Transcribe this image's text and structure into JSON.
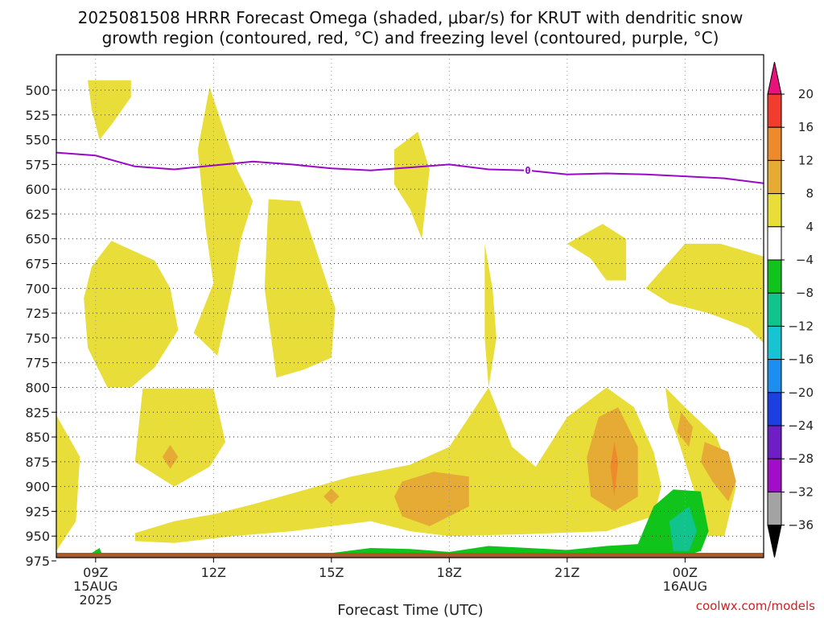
{
  "chart_data": {
    "type": "heatmap",
    "title_lines": [
      "2025081508 HRRR Forecast Omega (shaded, μbar/s) for KRUT with dendritic snow",
      "growth region (contoured, red, °C) and freezing level (contoured, purple, °C)"
    ],
    "xlabel": "Forecast Time (UTC)",
    "ylabel": "",
    "y_ticks": [
      500,
      525,
      550,
      575,
      600,
      625,
      650,
      675,
      700,
      725,
      750,
      775,
      800,
      825,
      850,
      875,
      900,
      925,
      950,
      975
    ],
    "y_axis": "pressure (hPa), inverted",
    "x_range_hours": [
      8,
      26
    ],
    "x_ticks": [
      {
        "hour": 9,
        "lines": [
          "09Z",
          "15AUG",
          "2025"
        ]
      },
      {
        "hour": 12,
        "lines": [
          "12Z"
        ]
      },
      {
        "hour": 15,
        "lines": [
          "15Z"
        ]
      },
      {
        "hour": 18,
        "lines": [
          "18Z"
        ]
      },
      {
        "hour": 21,
        "lines": [
          "21Z"
        ]
      },
      {
        "hour": 24,
        "lines": [
          "00Z",
          "16AUG"
        ]
      }
    ],
    "colorbar": {
      "labels": [
        "20",
        "16",
        "12",
        "8",
        "4",
        "−4",
        "−8",
        "−12",
        "−16",
        "−20",
        "−24",
        "−28",
        "−32",
        "−36"
      ],
      "bins": [
        {
          "range": [
            16,
            20
          ],
          "color": "#f23d2e"
        },
        {
          "range": [
            12,
            16
          ],
          "color": "#ee8a2c"
        },
        {
          "range": [
            8,
            12
          ],
          "color": "#e5ab35"
        },
        {
          "range": [
            4,
            8
          ],
          "color": "#e8dd39"
        },
        {
          "range": [
            -4,
            4
          ],
          "color": "#ffffff"
        },
        {
          "range": [
            -8,
            -4
          ],
          "color": "#10c41c"
        },
        {
          "range": [
            -12,
            -8
          ],
          "color": "#11c38c"
        },
        {
          "range": [
            -16,
            -12
          ],
          "color": "#16c4d2"
        },
        {
          "range": [
            -20,
            -16
          ],
          "color": "#1b8ef0"
        },
        {
          "range": [
            -24,
            -20
          ],
          "color": "#1c3fe2"
        },
        {
          "range": [
            -28,
            -24
          ],
          "color": "#6d1fc4"
        },
        {
          "range": [
            -32,
            -28
          ],
          "color": "#a20ec8"
        },
        {
          "range": [
            -36,
            -32
          ],
          "color": "#a3a3a3"
        }
      ],
      "top_extend_color": "#e8127a",
      "bottom_extend_color": "#000000"
    },
    "freezing_level": {
      "label": "0",
      "color": "#9a08c8",
      "points": [
        [
          8,
          563
        ],
        [
          9,
          566
        ],
        [
          10,
          577
        ],
        [
          11,
          580
        ],
        [
          12,
          576
        ],
        [
          13,
          572
        ],
        [
          14,
          575
        ],
        [
          15,
          579
        ],
        [
          16,
          581
        ],
        [
          17,
          578
        ],
        [
          18,
          575
        ],
        [
          19,
          580
        ],
        [
          20,
          581
        ],
        [
          21,
          585
        ],
        [
          22,
          584
        ],
        [
          23,
          585
        ],
        [
          24,
          587
        ],
        [
          25,
          589
        ],
        [
          26,
          594
        ]
      ]
    },
    "surface_color": "#a85a2a",
    "regions": [
      {
        "color": "#e8dd39",
        "points": [
          [
            8.8,
            490
          ],
          [
            9.9,
            490
          ],
          [
            9.9,
            507
          ],
          [
            9.4,
            535
          ],
          [
            9.1,
            550
          ],
          [
            8.9,
            520
          ]
        ]
      },
      {
        "color": "#e8dd39",
        "points": [
          [
            9.4,
            652
          ],
          [
            10.5,
            672
          ],
          [
            10.9,
            700
          ],
          [
            11.1,
            742
          ],
          [
            10.5,
            780
          ],
          [
            9.9,
            800
          ],
          [
            9.3,
            800
          ],
          [
            8.8,
            760
          ],
          [
            8.7,
            710
          ],
          [
            8.9,
            678
          ]
        ]
      },
      {
        "color": "#e8dd39",
        "points": [
          [
            11.9,
            497
          ],
          [
            12.6,
            580
          ],
          [
            13,
            612
          ],
          [
            12.7,
            650
          ],
          [
            12.5,
            695
          ],
          [
            12.1,
            768
          ],
          [
            11.5,
            745
          ],
          [
            12.0,
            695
          ],
          [
            11.8,
            640
          ],
          [
            11.6,
            560
          ]
        ]
      },
      {
        "color": "#e8dd39",
        "points": [
          [
            13.4,
            610
          ],
          [
            14.2,
            612
          ],
          [
            15.1,
            720
          ],
          [
            15.0,
            770
          ],
          [
            14.3,
            782
          ],
          [
            13.6,
            790
          ],
          [
            13.3,
            700
          ]
        ]
      },
      {
        "color": "#e8dd39",
        "points": [
          [
            17.2,
            542
          ],
          [
            17.5,
            580
          ],
          [
            17.3,
            650
          ],
          [
            17.0,
            620
          ],
          [
            16.6,
            595
          ],
          [
            16.6,
            560
          ]
        ]
      },
      {
        "color": "#e8dd39",
        "points": [
          [
            18.9,
            655
          ],
          [
            19.1,
            700
          ],
          [
            19.2,
            750
          ],
          [
            19.0,
            800
          ],
          [
            18.9,
            750
          ],
          [
            18.9,
            700
          ]
        ]
      },
      {
        "color": "#e8dd39",
        "points": [
          [
            21.0,
            655
          ],
          [
            21.9,
            635
          ],
          [
            22.5,
            650
          ],
          [
            22.5,
            692
          ],
          [
            22.0,
            692
          ],
          [
            21.6,
            670
          ]
        ]
      },
      {
        "color": "#e8dd39",
        "points": [
          [
            23.0,
            700
          ],
          [
            24.0,
            655
          ],
          [
            24.9,
            655
          ],
          [
            26.0,
            668
          ],
          [
            26.0,
            755
          ],
          [
            25.6,
            740
          ],
          [
            24.6,
            725
          ],
          [
            23.6,
            715
          ]
        ]
      },
      {
        "color": "#e8dd39",
        "points": [
          [
            10.2,
            801
          ],
          [
            12.0,
            801
          ],
          [
            12.3,
            855
          ],
          [
            11.9,
            880
          ],
          [
            11.0,
            900
          ],
          [
            10.0,
            875
          ]
        ]
      },
      {
        "color": "#e8dd39",
        "points": [
          [
            8.0,
            828
          ],
          [
            8.6,
            870
          ],
          [
            8.5,
            935
          ],
          [
            8.0,
            965
          ]
        ]
      },
      {
        "color": "#e8dd39",
        "points": [
          [
            10.0,
            947
          ],
          [
            11.0,
            935
          ],
          [
            12.0,
            928
          ],
          [
            13.0,
            918
          ],
          [
            14.0,
            907
          ],
          [
            15.5,
            890
          ],
          [
            17.0,
            878
          ],
          [
            18.0,
            860
          ],
          [
            19.0,
            800
          ],
          [
            19.6,
            860
          ],
          [
            20.2,
            880
          ],
          [
            21.0,
            830
          ],
          [
            22.0,
            800
          ],
          [
            22.7,
            820
          ],
          [
            23.2,
            865
          ],
          [
            23.4,
            900
          ],
          [
            23.2,
            930
          ],
          [
            22.0,
            945
          ],
          [
            20.0,
            948
          ],
          [
            18.0,
            950
          ],
          [
            17.0,
            945
          ],
          [
            16.0,
            935
          ],
          [
            15.0,
            940
          ],
          [
            14.0,
            945
          ],
          [
            12.5,
            950
          ],
          [
            11.0,
            957
          ],
          [
            10.0,
            955
          ]
        ]
      },
      {
        "color": "#e8dd39",
        "points": [
          [
            23.5,
            800
          ],
          [
            24.0,
            820
          ],
          [
            24.8,
            850
          ],
          [
            25.3,
            900
          ],
          [
            25.0,
            950
          ],
          [
            24.6,
            950
          ],
          [
            24.2,
            900
          ],
          [
            23.8,
            850
          ],
          [
            23.6,
            830
          ]
        ]
      },
      {
        "color": "#e5ab35",
        "points": [
          [
            16.8,
            895
          ],
          [
            17.6,
            885
          ],
          [
            18.5,
            890
          ],
          [
            18.5,
            920
          ],
          [
            17.5,
            940
          ],
          [
            16.8,
            930
          ],
          [
            16.6,
            910
          ]
        ]
      },
      {
        "color": "#e5ab35",
        "points": [
          [
            21.8,
            830
          ],
          [
            22.3,
            820
          ],
          [
            22.8,
            860
          ],
          [
            22.8,
            910
          ],
          [
            22.2,
            925
          ],
          [
            21.6,
            910
          ],
          [
            21.5,
            870
          ]
        ]
      },
      {
        "color": "#e5ab35",
        "points": [
          [
            24.5,
            855
          ],
          [
            25.1,
            865
          ],
          [
            25.3,
            895
          ],
          [
            25.1,
            915
          ],
          [
            24.7,
            895
          ],
          [
            24.4,
            875
          ]
        ]
      },
      {
        "color": "#e5ab35",
        "points": [
          [
            23.9,
            825
          ],
          [
            24.2,
            840
          ],
          [
            24.1,
            860
          ],
          [
            23.8,
            845
          ]
        ]
      },
      {
        "color": "#e5ab35",
        "points": [
          [
            10.9,
            858
          ],
          [
            11.1,
            870
          ],
          [
            10.9,
            882
          ],
          [
            10.7,
            870
          ]
        ]
      },
      {
        "color": "#e5ab35",
        "points": [
          [
            15.0,
            902
          ],
          [
            15.2,
            910
          ],
          [
            15.0,
            918
          ],
          [
            14.8,
            910
          ]
        ]
      },
      {
        "color": "#ee8a2c",
        "points": [
          [
            22.2,
            855
          ],
          [
            22.3,
            875
          ],
          [
            22.2,
            910
          ],
          [
            22.1,
            880
          ]
        ]
      },
      {
        "color": "#10c41c",
        "points": [
          [
            13.0,
            975
          ],
          [
            15.0,
            967
          ],
          [
            16.0,
            962
          ],
          [
            17.0,
            963
          ],
          [
            18.0,
            966
          ],
          [
            19.0,
            960
          ],
          [
            21.0,
            964
          ],
          [
            22.0,
            960
          ],
          [
            22.8,
            958
          ],
          [
            23.2,
            920
          ],
          [
            23.7,
            903
          ],
          [
            24.4,
            905
          ],
          [
            24.6,
            945
          ],
          [
            24.4,
            965
          ],
          [
            24.0,
            970
          ],
          [
            23.5,
            975
          ]
        ]
      },
      {
        "color": "#11c38c",
        "points": [
          [
            23.6,
            935
          ],
          [
            24.1,
            920
          ],
          [
            24.3,
            945
          ],
          [
            24.1,
            965
          ],
          [
            23.7,
            965
          ]
        ]
      },
      {
        "color": "#11c38c",
        "points": [
          [
            15.5,
            973
          ],
          [
            17.0,
            967
          ],
          [
            18.5,
            970
          ],
          [
            19.5,
            969
          ],
          [
            21.0,
            972
          ],
          [
            22.0,
            972
          ],
          [
            21.5,
            977
          ],
          [
            17.0,
            977
          ]
        ]
      },
      {
        "color": "#10c41c",
        "points": [
          [
            8.9,
            967
          ],
          [
            9.1,
            962
          ],
          [
            9.2,
            972
          ],
          [
            8.9,
            975
          ]
        ]
      }
    ]
  },
  "credit": "coolwx.com/models"
}
